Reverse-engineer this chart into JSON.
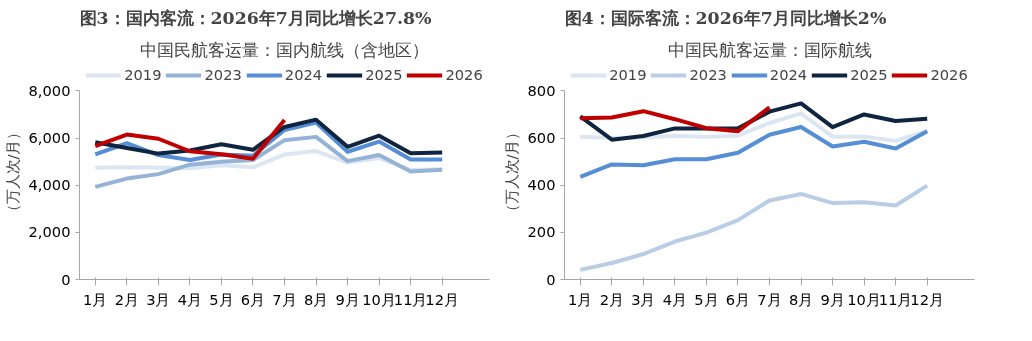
{
  "chart_data": [
    {
      "type": "line",
      "title": "图3：国内客流：2026年7月同比增长27.8%",
      "subtitle": "中国民航客运量：国内航线（含地区）",
      "ylabel": "（万人次/月）",
      "categories": [
        "1月",
        "2月",
        "3月",
        "4月",
        "5月",
        "6月",
        "7月",
        "8月",
        "9月",
        "10月",
        "11月",
        "12月"
      ],
      "ylim": [
        0,
        8000
      ],
      "yticks": [
        {
          "value": 0,
          "label": "0"
        },
        {
          "value": 2000,
          "label": "2,000"
        },
        {
          "value": 4000,
          "label": "4,000"
        },
        {
          "value": 6000,
          "label": "6,000"
        },
        {
          "value": 8000,
          "label": "8,000"
        }
      ],
      "grid": false,
      "legend": "top",
      "series": [
        {
          "name": "2019",
          "color": "#dce6f2",
          "values": [
            4740,
            4760,
            4750,
            4720,
            4850,
            4760,
            5300,
            5450,
            4960,
            5150,
            4640,
            4680
          ]
        },
        {
          "name": "2023",
          "color": "#95b3d7",
          "values": [
            3930,
            4280,
            4470,
            4870,
            4990,
            5070,
            5910,
            6050,
            5020,
            5280,
            4580,
            4660
          ]
        },
        {
          "name": "2024",
          "color": "#558ed5",
          "values": [
            5310,
            5780,
            5280,
            5070,
            5300,
            5250,
            6340,
            6660,
            5420,
            5850,
            5090,
            5090
          ]
        },
        {
          "name": "2025",
          "color": "#0f243e",
          "values": [
            5820,
            5580,
            5340,
            5470,
            5740,
            5500,
            6470,
            6780,
            5630,
            6100,
            5360,
            5390
          ]
        },
        {
          "name": "2026",
          "color": "#c00000",
          "values": [
            5660,
            6150,
            5970,
            5440,
            5310,
            5120,
            6770,
            null,
            null,
            null,
            null,
            null
          ]
        }
      ]
    },
    {
      "type": "line",
      "title": "图4：国际客流：2026年7月同比增长2%",
      "subtitle": "中国民航客运量：国际航线",
      "ylabel": "（万人次/月）",
      "categories": [
        "1月",
        "2月",
        "3月",
        "4月",
        "5月",
        "6月",
        "7月",
        "8月",
        "9月",
        "10月",
        "11月",
        "12月"
      ],
      "ylim": [
        0,
        800
      ],
      "yticks": [
        0,
        200,
        400,
        600,
        800
      ],
      "grid": false,
      "legend": "top",
      "series": [
        {
          "name": "2019",
          "color": "#dce6f2",
          "values": [
            606,
            600,
            602,
            610,
            605,
            610,
            664,
            705,
            606,
            606,
            588,
            630
          ]
        },
        {
          "name": "2023",
          "color": "#b9cde5",
          "values": [
            41,
            70,
            108,
            161,
            199,
            252,
            335,
            363,
            324,
            328,
            314,
            398
          ]
        },
        {
          "name": "2024",
          "color": "#558ed5",
          "values": [
            435,
            488,
            485,
            510,
            510,
            538,
            614,
            647,
            564,
            584,
            556,
            629
          ]
        },
        {
          "name": "2025",
          "color": "#0f243e",
          "values": [
            692,
            593,
            609,
            641,
            641,
            641,
            712,
            747,
            646,
            700,
            672,
            682
          ]
        },
        {
          "name": "2026",
          "color": "#c00000",
          "values": [
            684,
            687,
            714,
            680,
            642,
            629,
            730,
            null,
            null,
            null,
            null,
            null
          ]
        }
      ]
    }
  ]
}
